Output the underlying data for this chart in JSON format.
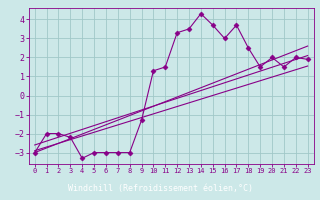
{
  "xlabel": "Windchill (Refroidissement éolien,°C)",
  "xlim": [
    -0.5,
    23.5
  ],
  "ylim": [
    -3.6,
    4.6
  ],
  "xticks": [
    0,
    1,
    2,
    3,
    4,
    5,
    6,
    7,
    8,
    9,
    10,
    11,
    12,
    13,
    14,
    15,
    16,
    17,
    18,
    19,
    20,
    21,
    22,
    23
  ],
  "yticks": [
    -3,
    -2,
    -1,
    0,
    1,
    2,
    3,
    4
  ],
  "bg_color": "#cce8e8",
  "grid_color": "#a0c8c8",
  "line_color": "#880088",
  "data_x": [
    0,
    1,
    2,
    3,
    4,
    5,
    6,
    7,
    8,
    9,
    10,
    11,
    12,
    13,
    14,
    15,
    16,
    17,
    18,
    19,
    20,
    21,
    22,
    23
  ],
  "data_y": [
    -3.0,
    -2.0,
    -2.0,
    -2.2,
    -3.3,
    -3.0,
    -3.0,
    -3.0,
    -3.0,
    -1.3,
    1.3,
    1.5,
    3.3,
    3.5,
    4.3,
    3.7,
    3.0,
    3.7,
    2.5,
    1.5,
    2.0,
    1.5,
    2.0,
    1.9
  ],
  "line1_x": [
    0,
    23
  ],
  "line1_y": [
    -3.0,
    2.6
  ],
  "line2_x": [
    0,
    23
  ],
  "line2_y": [
    -2.6,
    2.1
  ],
  "line3_x": [
    0,
    23
  ],
  "line3_y": [
    -2.9,
    1.55
  ],
  "marker": "D",
  "marker_size": 2.5,
  "line_width": 0.8,
  "xlabel_bg": "#660066",
  "xlabel_color": "#ffffff",
  "tick_color": "#880088",
  "tick_fontsize": 5,
  "ylabel_fontsize": 5,
  "spine_color": "#880088"
}
